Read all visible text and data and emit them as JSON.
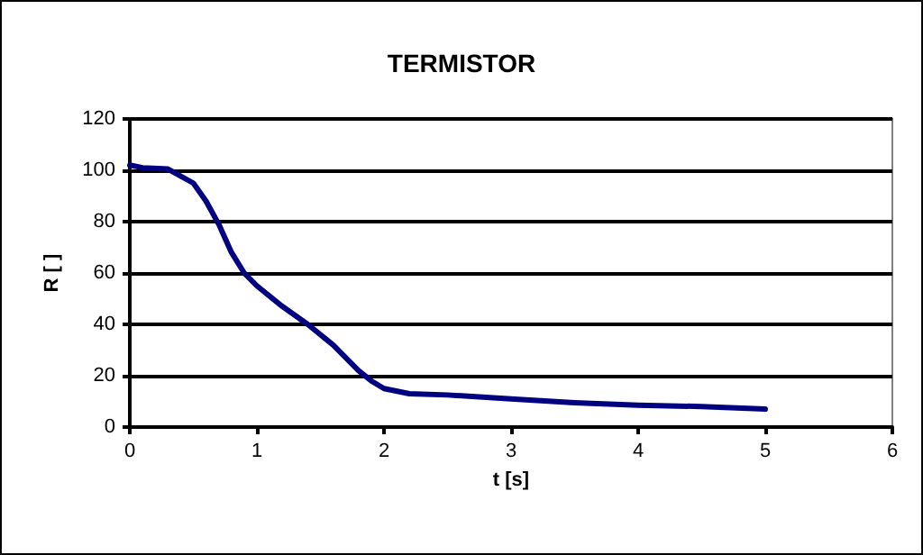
{
  "chart_data": {
    "type": "line",
    "title": "TERMISTOR",
    "xlabel": "t [s]",
    "ylabel": "R [ ]",
    "x": [
      0,
      0.1,
      0.3,
      0.5,
      0.6,
      0.7,
      0.8,
      0.9,
      1,
      1.2,
      1.4,
      1.6,
      1.8,
      1.9,
      2,
      2.2,
      2.5,
      3,
      3.5,
      4,
      4.5,
      5
    ],
    "series": [
      {
        "color": "#000080",
        "values": [
          102,
          101,
          100.5,
          95,
          88,
          79,
          68,
          60,
          55,
          47,
          40,
          32,
          22,
          18,
          15,
          13,
          12.5,
          11,
          9.5,
          8.5,
          8,
          7
        ]
      }
    ],
    "xlim": [
      0,
      6
    ],
    "xticks": [
      0,
      1,
      2,
      3,
      4,
      5,
      6
    ],
    "ylim": [
      0,
      120
    ],
    "yticks": [
      0,
      20,
      40,
      60,
      80,
      100,
      120
    ],
    "grid": "y",
    "marker": "none",
    "line_style": "solid"
  }
}
